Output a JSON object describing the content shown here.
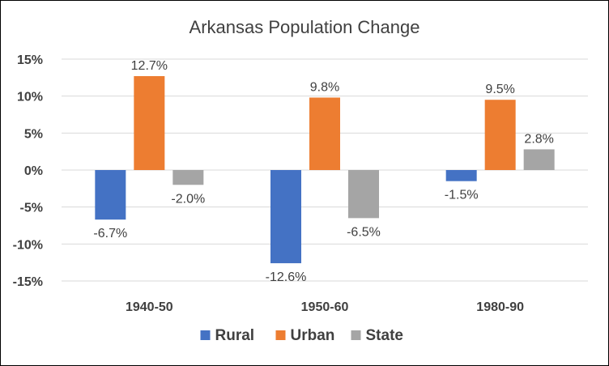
{
  "chart_data": {
    "type": "bar",
    "title": "Arkansas Population Change",
    "categories": [
      "1940-50",
      "1950-60",
      "1980-90"
    ],
    "series": [
      {
        "name": "Rural",
        "values": [
          -6.7,
          -12.6,
          -1.5
        ],
        "labels": [
          "-6.7%",
          "-12.6%",
          "-1.5%"
        ],
        "color": "#4472c4"
      },
      {
        "name": "Urban",
        "values": [
          12.7,
          9.8,
          9.5
        ],
        "labels": [
          "12.7%",
          "9.8%",
          "9.5%"
        ],
        "color": "#ed7d31"
      },
      {
        "name": "State",
        "values": [
          -2.0,
          -6.5,
          2.8
        ],
        "labels": [
          "-2.0%",
          "-6.5%",
          "2.8%"
        ],
        "color": "#a5a5a5"
      }
    ],
    "yticks": [
      15,
      10,
      5,
      0,
      -5,
      -10,
      -15
    ],
    "ytick_labels": [
      "15%",
      "10%",
      "5%",
      "0%",
      "-5%",
      "-10%",
      "-15%"
    ],
    "ylim": [
      -15,
      15
    ],
    "ylabel": "",
    "xlabel": "",
    "grid": true,
    "legend_position": "bottom",
    "gridline_color": "#d9d9d9"
  }
}
